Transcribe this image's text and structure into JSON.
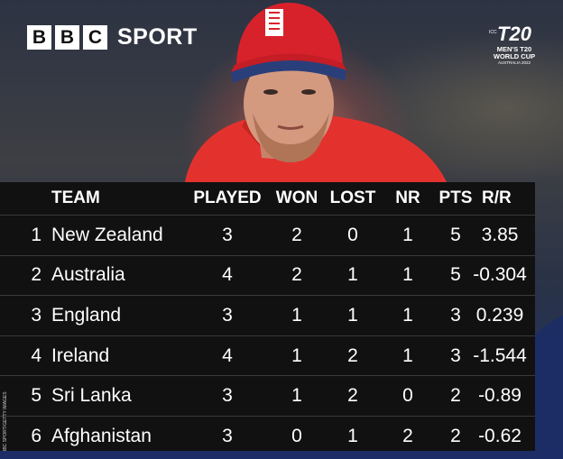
{
  "brand": {
    "boxes": [
      "B",
      "B",
      "C"
    ],
    "sport": "SPORT"
  },
  "event_logo": {
    "big": "T20",
    "icc": "ICC",
    "line1": "MEN'S T20",
    "line2": "WORLD CUP",
    "line3": "AUSTRALIA 2022"
  },
  "table": {
    "headers": {
      "team": "TEAM",
      "played": "PLAYED",
      "won": "WON",
      "lost": "LOST",
      "nr": "NR",
      "pts": "PTS",
      "rr": "R/R"
    },
    "rows": [
      {
        "pos": "1",
        "team": "New Zealand",
        "played": "3",
        "won": "2",
        "lost": "0",
        "nr": "1",
        "pts": "5",
        "rr": "3.85"
      },
      {
        "pos": "2",
        "team": "Australia",
        "played": "4",
        "won": "2",
        "lost": "1",
        "nr": "1",
        "pts": "5",
        "rr": "-0.304"
      },
      {
        "pos": "3",
        "team": "England",
        "played": "3",
        "won": "1",
        "lost": "1",
        "nr": "1",
        "pts": "3",
        "rr": "0.239"
      },
      {
        "pos": "4",
        "team": "Ireland",
        "played": "4",
        "won": "1",
        "lost": "2",
        "nr": "1",
        "pts": "3",
        "rr": "-1.544"
      },
      {
        "pos": "5",
        "team": "Sri Lanka",
        "played": "3",
        "won": "1",
        "lost": "2",
        "nr": "0",
        "pts": "2",
        "rr": "-0.89"
      },
      {
        "pos": "6",
        "team": "Afghanistan",
        "played": "3",
        "won": "0",
        "lost": "1",
        "nr": "2",
        "pts": "2",
        "rr": "-0.62"
      }
    ]
  },
  "credit": "BBC SPORT/GETTY IMAGES",
  "colors": {
    "table_bg": "#111111",
    "cap_red": "#d8222b",
    "shirt_red": "#e3322e"
  }
}
